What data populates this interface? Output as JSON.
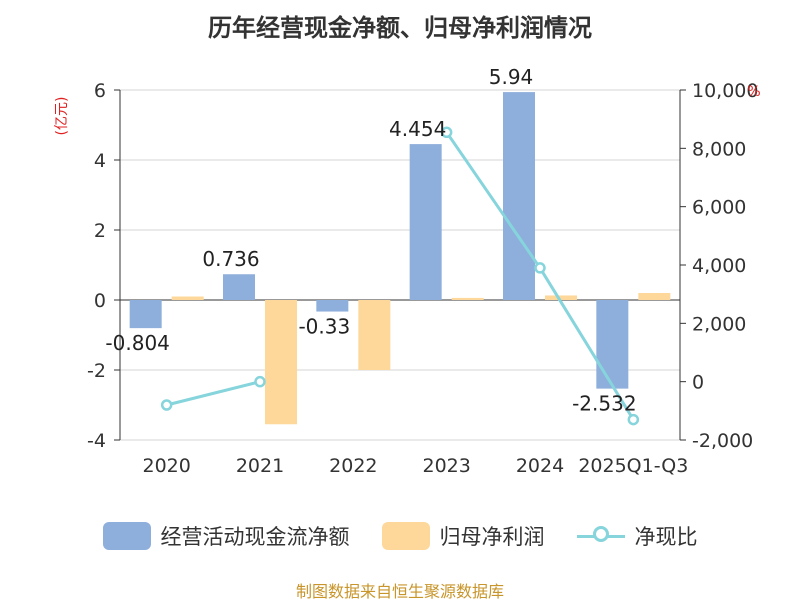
{
  "chart_data": {
    "type": "bar",
    "title": "历年经营现金净额、归母净利润情况",
    "categories": [
      "2020",
      "2021",
      "2022",
      "2023",
      "2024",
      "2025Q1-Q3"
    ],
    "left_axis": {
      "unit": "(亿元)",
      "ylim": [
        -4,
        6
      ],
      "ticks": [
        "6",
        "4",
        "2",
        "0",
        "-2",
        "-4"
      ]
    },
    "right_axis": {
      "unit": "%",
      "ylim": [
        -2000,
        10000
      ],
      "ticks": [
        "10,000",
        "8,000",
        "6,000",
        "4,000",
        "2,000",
        "0",
        "-2,000"
      ]
    },
    "grid": true,
    "legend_position": "bottom",
    "series": [
      {
        "name": "经营活动现金流净额",
        "type": "bar",
        "axis": "left",
        "color": "#8eaedb",
        "values": [
          -0.804,
          0.736,
          -0.33,
          4.454,
          5.94,
          -2.532
        ],
        "labels": [
          "-0.804",
          "0.736",
          "-0.33",
          "4.454",
          "5.94",
          "-2.532"
        ]
      },
      {
        "name": "归母净利润",
        "type": "bar",
        "axis": "left",
        "color": "#fdd89a",
        "values": [
          0.1,
          -3.55,
          -2.0,
          0.06,
          0.13,
          0.2
        ]
      },
      {
        "name": "净现比",
        "type": "line",
        "axis": "right",
        "color": "#86d4dc",
        "values": [
          -800,
          0,
          null,
          8550,
          3900,
          -1300
        ]
      }
    ]
  },
  "source": "制图数据来自恒生聚源数据库"
}
